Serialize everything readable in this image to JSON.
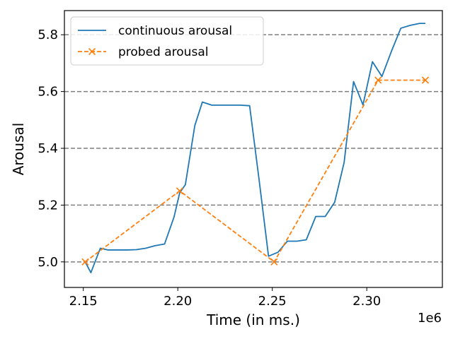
{
  "chart_data": {
    "type": "line",
    "xlabel": "Time (in ms.)",
    "ylabel": "Arousal",
    "x_offset_label": "1e6",
    "xlim": [
      2140000,
      2340000
    ],
    "ylim": [
      4.91,
      5.885
    ],
    "xticks": [
      2150000,
      2200000,
      2250000,
      2300000
    ],
    "xtick_labels": [
      "2.15",
      "2.20",
      "2.25",
      "2.30"
    ],
    "yticks": [
      5.0,
      5.2,
      5.4,
      5.6,
      5.8
    ],
    "ytick_labels": [
      "5.0",
      "5.2",
      "5.4",
      "5.6",
      "5.8"
    ],
    "grid": "horizontal dashed",
    "legend_position": "top-left",
    "series": [
      {
        "name": "continuous arousal",
        "color": "#1f77b4",
        "style": "solid",
        "marker": "none",
        "x": [
          2151000,
          2154000,
          2159000,
          2163000,
          2168000,
          2173000,
          2178000,
          2183000,
          2188000,
          2193000,
          2198000,
          2201000,
          2204000,
          2209000,
          2213000,
          2218000,
          2223000,
          2228000,
          2233000,
          2238000,
          2243000,
          2248000,
          2253000,
          2258000,
          2263000,
          2268000,
          2273000,
          2278000,
          2283000,
          2288000,
          2293000,
          2298000,
          2303000,
          2308000,
          2313000,
          2318000,
          2323000,
          2328000,
          2331000
        ],
        "y": [
          5.0,
          4.962,
          5.048,
          5.042,
          5.042,
          5.042,
          5.043,
          5.048,
          5.057,
          5.063,
          5.158,
          5.243,
          5.272,
          5.48,
          5.563,
          5.552,
          5.552,
          5.552,
          5.552,
          5.55,
          5.29,
          5.02,
          5.034,
          5.073,
          5.073,
          5.078,
          5.16,
          5.16,
          5.21,
          5.35,
          5.635,
          5.553,
          5.705,
          5.653,
          5.741,
          5.823,
          5.833,
          5.84,
          5.84
        ]
      },
      {
        "name": "probed arousal",
        "color": "#ff7f0e",
        "style": "dashed",
        "marker": "x",
        "x": [
          2151000,
          2201000,
          2251000,
          2306000,
          2331000
        ],
        "y": [
          5.0,
          5.25,
          5.0,
          5.64,
          5.64
        ]
      }
    ]
  }
}
